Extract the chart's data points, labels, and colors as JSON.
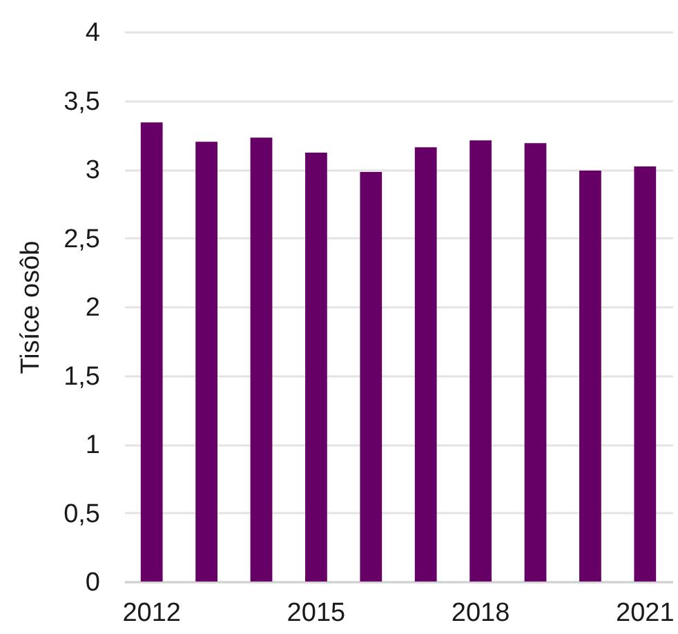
{
  "chart_data": {
    "type": "bar",
    "ylabel": "Tisíce osôb",
    "categories": [
      "2012",
      null,
      null,
      "2015",
      null,
      null,
      "2018",
      null,
      null,
      "2021"
    ],
    "values": [
      3.34,
      3.2,
      3.23,
      3.12,
      2.98,
      3.16,
      3.21,
      3.19,
      2.99,
      3.02
    ],
    "color": "#660066",
    "ylim": [
      0,
      4
    ],
    "yticks": [
      0,
      {
        "value": 0.5,
        "label": "0,5"
      },
      1,
      {
        "value": 1.5,
        "label": "1,5"
      },
      2,
      {
        "value": 2.5,
        "label": "2,5"
      },
      3,
      {
        "value": 3.5,
        "label": "3,5"
      },
      4
    ],
    "grid": "y"
  }
}
